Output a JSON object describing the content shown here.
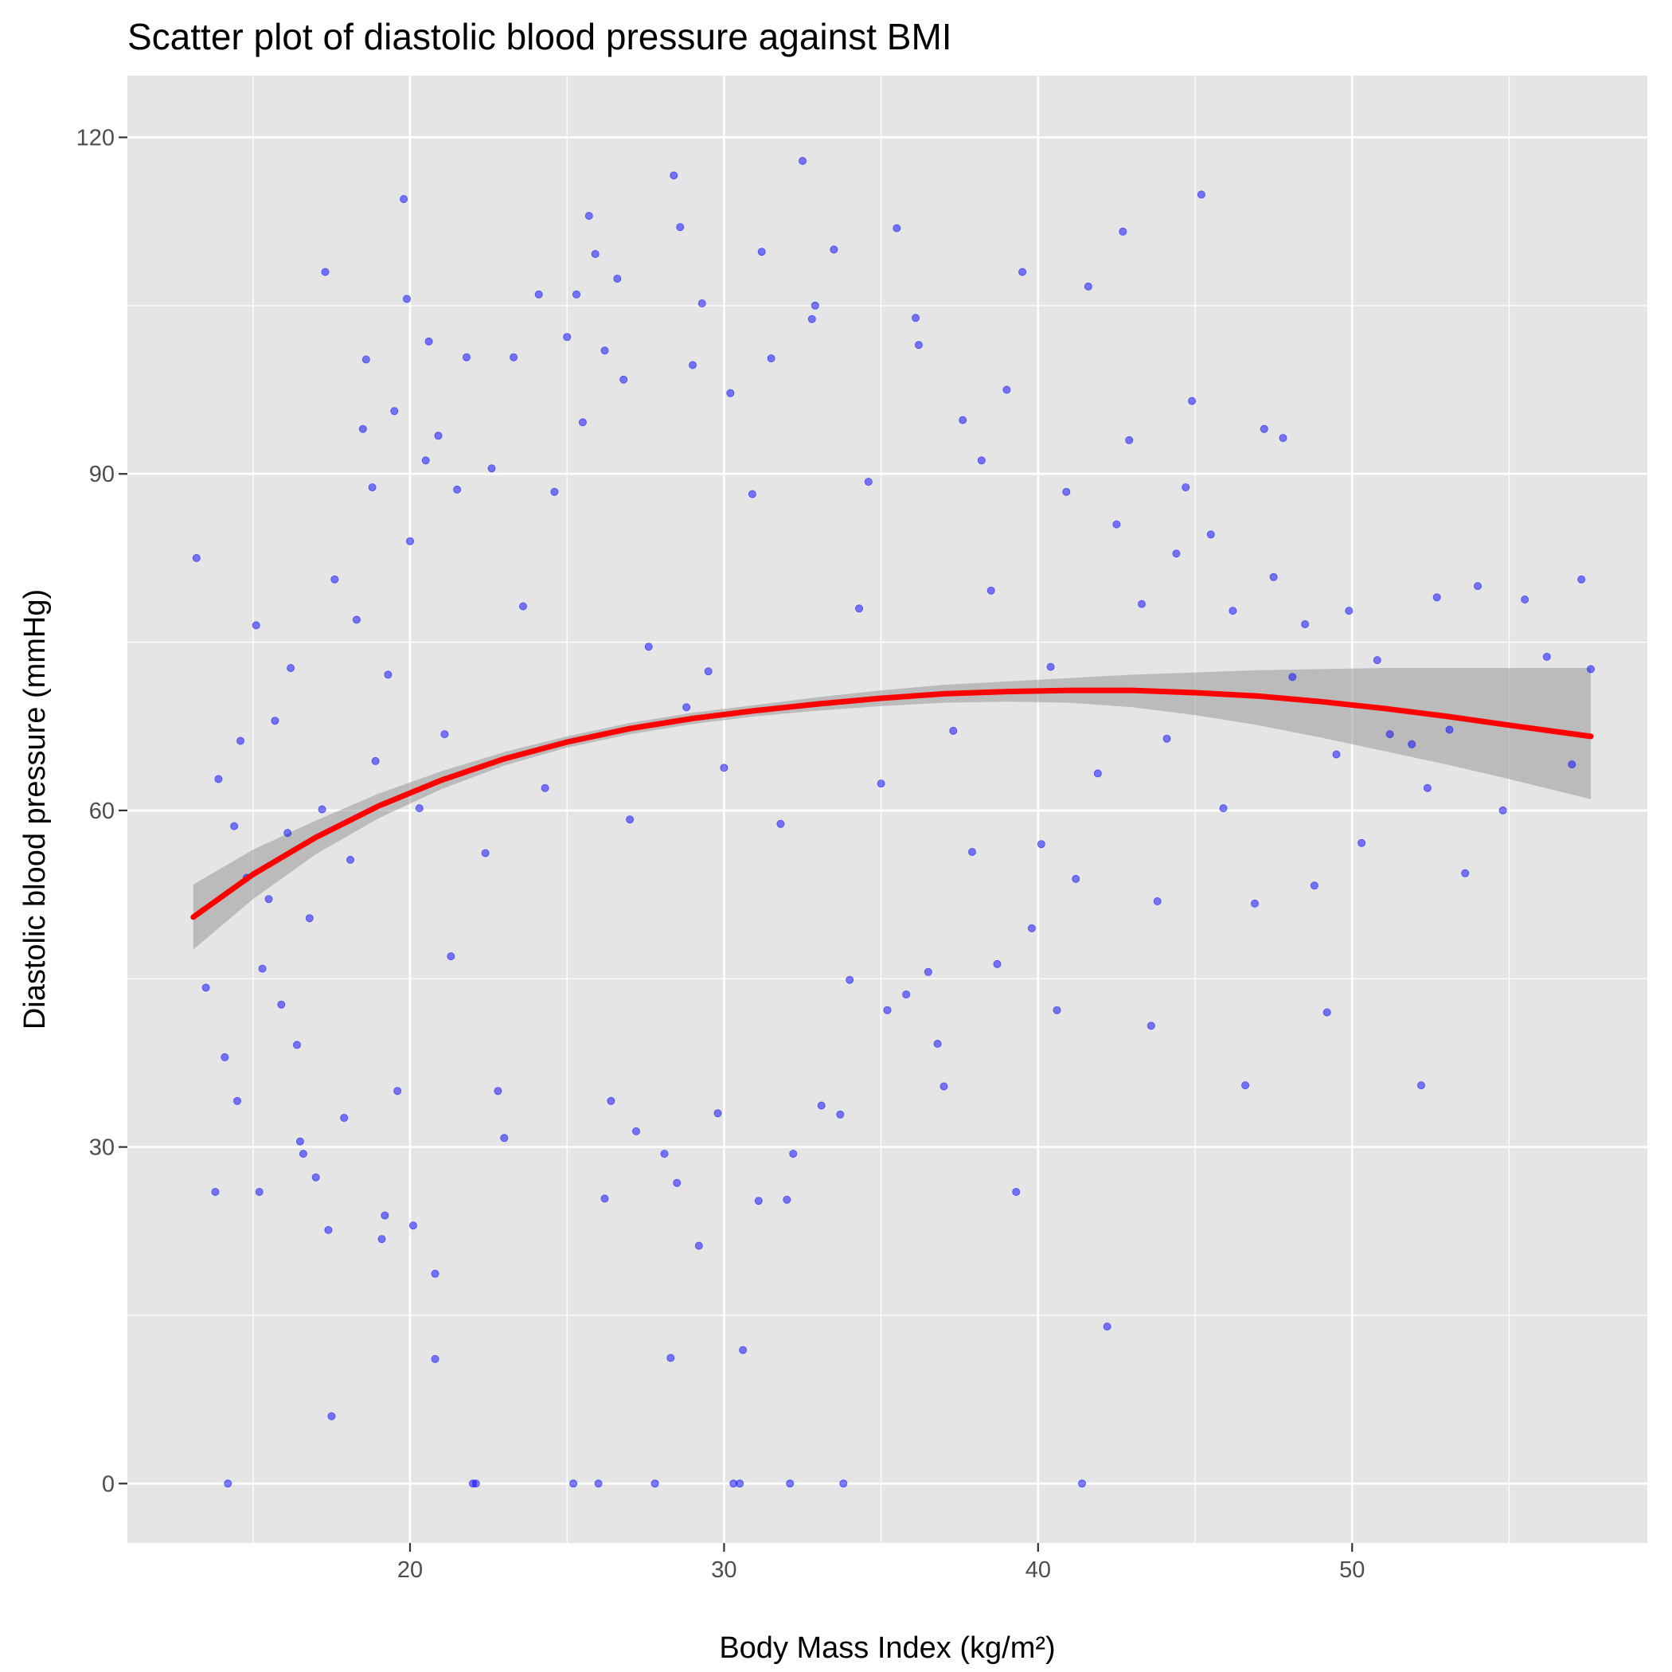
{
  "chart_data": {
    "type": "scatter",
    "title": "Scatter plot of diastolic blood pressure against BMI",
    "xlabel": "Body Mass Index (kg/m²)",
    "ylabel": "Diastolic blood pressure (mmHg)",
    "xlim": [
      11.0,
      59.4
    ],
    "ylim": [
      -5.3,
      125.5
    ],
    "x_major_ticks": [
      20,
      30,
      40,
      50
    ],
    "x_minor_ticks": [
      15,
      25,
      35,
      45,
      55
    ],
    "y_major_ticks": [
      0,
      30,
      60,
      90,
      120
    ],
    "y_minor_ticks": [
      15,
      45,
      75,
      105
    ],
    "x_tick_labels": [
      "20",
      "30",
      "40",
      "50"
    ],
    "y_tick_labels": [
      "0",
      "30",
      "60",
      "90",
      "120"
    ],
    "grid": true,
    "legend": "none",
    "colors": {
      "panel_background": "#e5e5e5",
      "grid": "#ffffff",
      "points": "#0000ff",
      "smooth_line": "#ff0000",
      "confidence_band": "#999999"
    },
    "series": [
      {
        "type": "scatter",
        "points": [
          [
            13.2,
            82.5
          ],
          [
            13.5,
            44.2
          ],
          [
            13.8,
            26.0
          ],
          [
            13.9,
            62.8
          ],
          [
            14.1,
            38.0
          ],
          [
            14.2,
            0.0
          ],
          [
            14.4,
            58.6
          ],
          [
            14.5,
            34.1
          ],
          [
            14.6,
            66.2
          ],
          [
            14.8,
            54.0
          ],
          [
            15.1,
            76.5
          ],
          [
            15.2,
            26.0
          ],
          [
            15.3,
            45.9
          ],
          [
            15.5,
            52.1
          ],
          [
            15.7,
            68.0
          ],
          [
            15.9,
            42.7
          ],
          [
            16.1,
            58.0
          ],
          [
            16.2,
            72.7
          ],
          [
            16.4,
            39.1
          ],
          [
            16.5,
            30.5
          ],
          [
            16.6,
            29.4
          ],
          [
            16.8,
            50.4
          ],
          [
            17.0,
            27.3
          ],
          [
            17.2,
            60.1
          ],
          [
            17.3,
            108.0
          ],
          [
            17.4,
            22.6
          ],
          [
            17.5,
            6.0
          ],
          [
            17.6,
            80.6
          ],
          [
            17.9,
            32.6
          ],
          [
            18.1,
            55.6
          ],
          [
            18.3,
            77.0
          ],
          [
            18.5,
            94.0
          ],
          [
            18.6,
            100.2
          ],
          [
            18.8,
            88.8
          ],
          [
            18.9,
            64.4
          ],
          [
            19.1,
            21.8
          ],
          [
            19.2,
            23.9
          ],
          [
            19.3,
            72.1
          ],
          [
            19.5,
            95.6
          ],
          [
            19.6,
            35.0
          ],
          [
            19.8,
            114.5
          ],
          [
            19.9,
            105.6
          ],
          [
            20.0,
            84.0
          ],
          [
            20.1,
            23.0
          ],
          [
            20.3,
            60.2
          ],
          [
            20.5,
            91.2
          ],
          [
            20.6,
            101.8
          ],
          [
            20.8,
            18.7
          ],
          [
            20.8,
            11.1
          ],
          [
            20.9,
            93.4
          ],
          [
            21.1,
            66.8
          ],
          [
            21.3,
            47.0
          ],
          [
            21.5,
            88.6
          ],
          [
            21.8,
            100.4
          ],
          [
            22.0,
            0.0
          ],
          [
            22.1,
            0.0
          ],
          [
            22.4,
            56.2
          ],
          [
            22.6,
            90.5
          ],
          [
            22.8,
            35.0
          ],
          [
            23.0,
            30.8
          ],
          [
            23.3,
            100.4
          ],
          [
            23.6,
            78.2
          ],
          [
            24.1,
            106.0
          ],
          [
            24.3,
            62.0
          ],
          [
            24.6,
            88.4
          ],
          [
            25.0,
            102.2
          ],
          [
            25.2,
            0.0
          ],
          [
            25.3,
            106.0
          ],
          [
            25.5,
            94.6
          ],
          [
            25.7,
            113.0
          ],
          [
            25.9,
            109.6
          ],
          [
            26.0,
            0.0
          ],
          [
            26.2,
            101.0
          ],
          [
            26.2,
            25.4
          ],
          [
            26.4,
            34.1
          ],
          [
            26.6,
            107.4
          ],
          [
            26.8,
            98.4
          ],
          [
            27.0,
            59.2
          ],
          [
            27.2,
            31.4
          ],
          [
            27.6,
            74.6
          ],
          [
            27.8,
            0.0
          ],
          [
            28.1,
            29.4
          ],
          [
            28.3,
            11.2
          ],
          [
            28.4,
            116.6
          ],
          [
            28.5,
            26.8
          ],
          [
            28.6,
            112.0
          ],
          [
            28.8,
            69.2
          ],
          [
            29.0,
            99.7
          ],
          [
            29.2,
            21.2
          ],
          [
            29.3,
            105.2
          ],
          [
            29.5,
            72.4
          ],
          [
            29.8,
            33.0
          ],
          [
            30.0,
            63.8
          ],
          [
            30.2,
            97.2
          ],
          [
            30.3,
            0.0
          ],
          [
            30.5,
            0.0
          ],
          [
            30.6,
            11.9
          ],
          [
            30.9,
            88.2
          ],
          [
            31.1,
            25.2
          ],
          [
            31.2,
            109.8
          ],
          [
            31.5,
            100.3
          ],
          [
            31.8,
            58.8
          ],
          [
            32.0,
            25.3
          ],
          [
            32.1,
            0.0
          ],
          [
            32.2,
            29.4
          ],
          [
            32.5,
            117.9
          ],
          [
            32.8,
            103.8
          ],
          [
            32.9,
            105.0
          ],
          [
            33.1,
            33.7
          ],
          [
            33.5,
            110.0
          ],
          [
            33.7,
            32.9
          ],
          [
            33.8,
            0.0
          ],
          [
            34.0,
            44.9
          ],
          [
            34.3,
            78.0
          ],
          [
            34.6,
            89.3
          ],
          [
            35.0,
            62.4
          ],
          [
            35.2,
            42.2
          ],
          [
            35.5,
            111.9
          ],
          [
            35.8,
            43.6
          ],
          [
            36.1,
            103.9
          ],
          [
            36.2,
            101.5
          ],
          [
            36.5,
            45.6
          ],
          [
            36.8,
            39.2
          ],
          [
            37.0,
            35.4
          ],
          [
            37.3,
            67.1
          ],
          [
            37.6,
            94.8
          ],
          [
            37.9,
            56.3
          ],
          [
            38.2,
            91.2
          ],
          [
            38.5,
            79.6
          ],
          [
            38.7,
            46.3
          ],
          [
            39.0,
            97.5
          ],
          [
            39.3,
            26.0
          ],
          [
            39.5,
            108.0
          ],
          [
            39.8,
            49.5
          ],
          [
            40.1,
            57.0
          ],
          [
            40.4,
            72.8
          ],
          [
            40.6,
            42.2
          ],
          [
            40.9,
            88.4
          ],
          [
            41.2,
            53.9
          ],
          [
            41.4,
            0.0
          ],
          [
            41.6,
            106.7
          ],
          [
            41.9,
            63.3
          ],
          [
            42.2,
            14.0
          ],
          [
            42.5,
            85.5
          ],
          [
            42.7,
            111.6
          ],
          [
            42.9,
            93.0
          ],
          [
            43.3,
            78.4
          ],
          [
            43.6,
            40.8
          ],
          [
            43.8,
            51.9
          ],
          [
            44.1,
            66.4
          ],
          [
            44.4,
            82.9
          ],
          [
            44.7,
            88.8
          ],
          [
            44.9,
            96.5
          ],
          [
            45.2,
            114.9
          ],
          [
            45.5,
            84.6
          ],
          [
            45.9,
            60.2
          ],
          [
            46.2,
            77.8
          ],
          [
            46.6,
            35.5
          ],
          [
            46.9,
            51.7
          ],
          [
            47.2,
            94.0
          ],
          [
            47.5,
            80.8
          ],
          [
            47.8,
            93.2
          ],
          [
            48.1,
            71.9
          ],
          [
            48.5,
            76.6
          ],
          [
            48.8,
            53.3
          ],
          [
            49.2,
            42.0
          ],
          [
            49.5,
            65.0
          ],
          [
            49.9,
            77.8
          ],
          [
            50.3,
            57.1
          ],
          [
            50.8,
            73.4
          ],
          [
            51.2,
            66.8
          ],
          [
            51.9,
            65.9
          ],
          [
            52.2,
            35.5
          ],
          [
            52.4,
            62.0
          ],
          [
            52.7,
            79.0
          ],
          [
            53.1,
            67.2
          ],
          [
            53.6,
            54.4
          ],
          [
            54.0,
            80.0
          ],
          [
            54.8,
            60.0
          ],
          [
            55.5,
            78.8
          ],
          [
            56.2,
            73.7
          ],
          [
            57.0,
            64.1
          ],
          [
            57.3,
            80.6
          ],
          [
            57.6,
            72.6
          ]
        ]
      },
      {
        "type": "loess-smooth",
        "x": [
          13.1,
          15.0,
          17.0,
          19.0,
          21.0,
          23.0,
          25.0,
          27.0,
          29.0,
          31.0,
          33.0,
          35.0,
          37.0,
          39.0,
          41.0,
          43.0,
          45.0,
          47.0,
          49.0,
          51.0,
          53.0,
          55.0,
          57.6
        ],
        "y": [
          50.5,
          54.3,
          57.6,
          60.4,
          62.7,
          64.6,
          66.1,
          67.3,
          68.2,
          68.9,
          69.5,
          70.0,
          70.4,
          70.6,
          70.7,
          70.7,
          70.5,
          70.2,
          69.7,
          69.1,
          68.4,
          67.6,
          66.6
        ],
        "ci_lower": [
          47.6,
          52.1,
          56.1,
          59.3,
          61.9,
          64.0,
          65.6,
          66.8,
          67.7,
          68.4,
          68.9,
          69.3,
          69.6,
          69.7,
          69.6,
          69.2,
          68.5,
          67.6,
          66.5,
          65.3,
          64.1,
          62.8,
          61.0
        ],
        "ci_upper": [
          53.4,
          56.5,
          59.1,
          61.5,
          63.5,
          65.2,
          66.6,
          67.8,
          68.7,
          69.4,
          70.1,
          70.7,
          71.2,
          71.5,
          71.8,
          72.1,
          72.3,
          72.5,
          72.6,
          72.7,
          72.7,
          72.7,
          72.7
        ]
      }
    ]
  }
}
